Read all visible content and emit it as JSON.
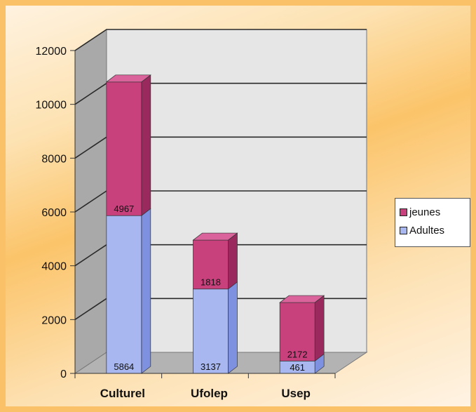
{
  "chart_data": {
    "type": "bar",
    "stacked": true,
    "three_d": true,
    "categories": [
      "Culturel",
      "Ufolep",
      "Usep"
    ],
    "series": [
      {
        "name": "Adultes",
        "values": [
          5864,
          3137,
          461
        ],
        "color": "#a8b7ef"
      },
      {
        "name": "jeunes",
        "values": [
          4967,
          1818,
          2172
        ],
        "color": "#c8417d"
      }
    ],
    "y_ticks": [
      "0",
      "2000",
      "4000",
      "6000",
      "8000",
      "10000",
      "12000"
    ],
    "ylim": [
      0,
      12000
    ],
    "grid": true,
    "legend_position": "right",
    "colors": {
      "adultes_side": "#7e91e0",
      "adultes_top": "#c7d2f7",
      "jeunes_side": "#9a2a5d",
      "jeunes_top": "#d9639a",
      "wall": "#e6e6e6",
      "side_wall": "#a9a9a9",
      "floor": "#b3b3b3"
    }
  },
  "legend": {
    "items": [
      {
        "label": "jeunes",
        "color": "#c8417d"
      },
      {
        "label": "Adultes",
        "color": "#a8b7ef"
      }
    ]
  }
}
